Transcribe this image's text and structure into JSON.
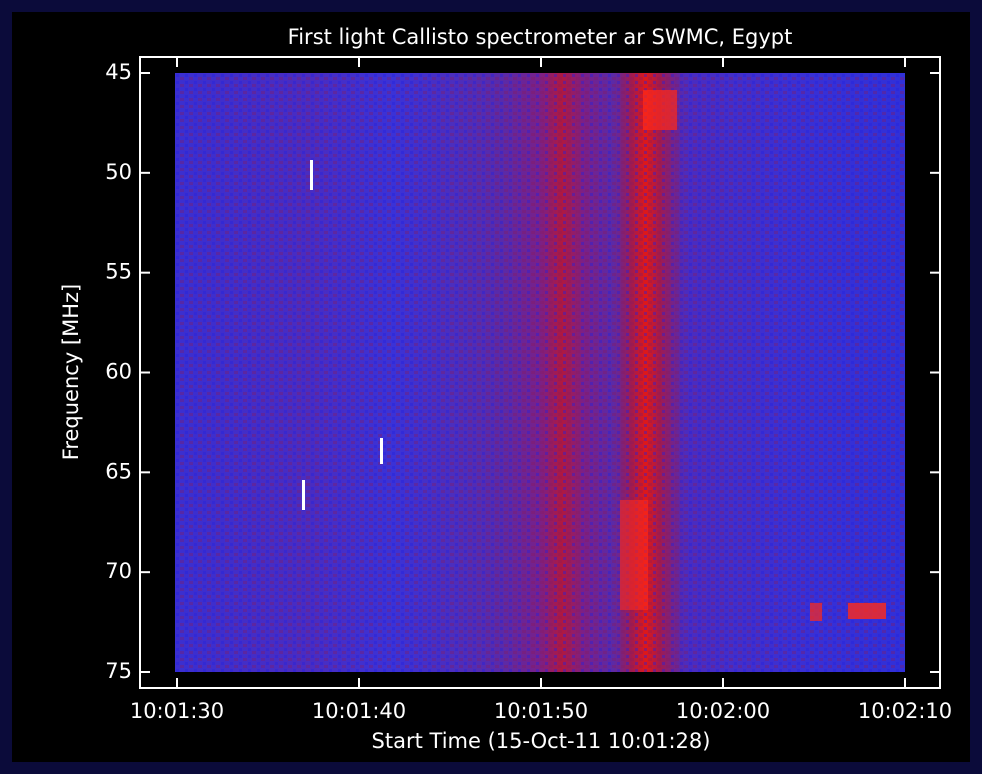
{
  "chart_data": {
    "type": "spectrogram",
    "title": "First light Callisto spectrometer ar SWMC, Egypt",
    "xlabel": "Start Time (15-Oct-11 10:01:28)",
    "ylabel": "Frequency [MHz]",
    "xlim": [
      "10:01:30",
      "10:02:10"
    ],
    "xticks": [
      "10:01:30",
      "10:01:40",
      "10:01:50",
      "10:02:00",
      "10:02:10"
    ],
    "ylim": [
      45,
      75
    ],
    "yticks": [
      45,
      50,
      55,
      60,
      65,
      70,
      75
    ]
  }
}
